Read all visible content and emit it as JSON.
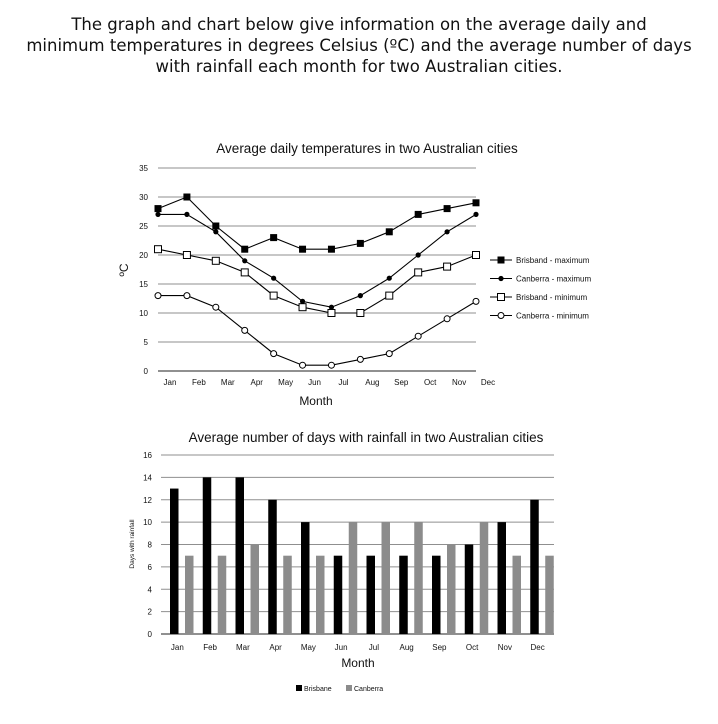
{
  "heading": {
    "line1": "The graph and chart below give information on the average daily and",
    "line2": "minimum temperatures in degrees Celsius (ºC) and the average number of days",
    "line3": "with rainfall each month for two Australian cities."
  },
  "chart_data": [
    {
      "type": "line",
      "title": "Average daily temperatures in two Australian cities",
      "xlabel": "Month",
      "ylabel": "ºC",
      "ylim": [
        0,
        35
      ],
      "yticks": [
        0,
        5,
        10,
        15,
        20,
        25,
        30,
        35
      ],
      "grid": true,
      "legend": "right",
      "categories": [
        "Jan",
        "Feb",
        "Mar",
        "Apr",
        "May",
        "Jun",
        "Jul",
        "Aug",
        "Sep",
        "Oct",
        "Nov",
        "Dec"
      ],
      "series": [
        {
          "name": "Brisband - maximum",
          "marker": "filled-square",
          "values": [
            28,
            30,
            25,
            21,
            23,
            21,
            21,
            22,
            24,
            27,
            28,
            29
          ]
        },
        {
          "name": "Canberra - maximum",
          "marker": "filled-circle",
          "values": [
            27,
            27,
            24,
            19,
            16,
            12,
            11,
            13,
            16,
            20,
            24,
            27
          ]
        },
        {
          "name": "Brisband - minimum",
          "marker": "open-square",
          "values": [
            21,
            20,
            19,
            17,
            13,
            11,
            10,
            10,
            13,
            17,
            18,
            20
          ]
        },
        {
          "name": "Canberra - minimum",
          "marker": "open-circle",
          "values": [
            13,
            13,
            11,
            7,
            3,
            1,
            1,
            2,
            3,
            6,
            9,
            12
          ]
        }
      ]
    },
    {
      "type": "bar",
      "title": "Average number of days with rainfall in two Australian cities",
      "xlabel": "Month",
      "ylabel": "Days with rainfall",
      "ylim": [
        0,
        16
      ],
      "yticks": [
        0,
        2,
        4,
        6,
        8,
        10,
        12,
        14,
        16
      ],
      "grid": true,
      "legend": "bottom",
      "categories": [
        "Jan",
        "Feb",
        "Mar",
        "Apr",
        "May",
        "Jun",
        "Jul",
        "Aug",
        "Sep",
        "Oct",
        "Nov",
        "Dec"
      ],
      "series": [
        {
          "name": "Brisbane",
          "color": "#000000",
          "values": [
            13,
            14,
            14,
            12,
            10,
            7,
            7,
            7,
            7,
            8,
            10,
            12
          ]
        },
        {
          "name": "Canberra",
          "color": "#8c8c8c",
          "values": [
            7,
            7,
            8,
            7,
            7,
            10,
            10,
            10,
            8,
            10,
            7,
            7
          ]
        }
      ]
    }
  ]
}
